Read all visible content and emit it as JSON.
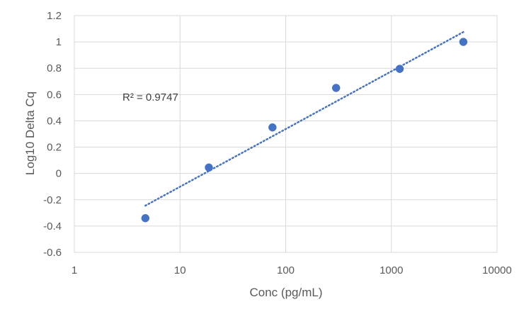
{
  "chart_data": {
    "type": "scatter",
    "title": "",
    "xlabel": "Conc (pg/mL)",
    "ylabel": "Log10 Delta Cq",
    "x_scale": "log",
    "xlim": [
      1,
      10000
    ],
    "ylim": [
      -0.6,
      1.2
    ],
    "x_ticks": [
      "1",
      "10",
      "100",
      "1000",
      "10000"
    ],
    "y_ticks": [
      "-0.6",
      "-0.4",
      "-0.2",
      "0",
      "0.2",
      "0.4",
      "0.6",
      "0.8",
      "1",
      "1.2"
    ],
    "grid": true,
    "legend": "none",
    "series": [
      {
        "color": "#4472C4",
        "points": [
          {
            "x": 4.7,
            "y": -0.34
          },
          {
            "x": 18.75,
            "y": 0.045
          },
          {
            "x": 75,
            "y": 0.35
          },
          {
            "x": 300,
            "y": 0.65
          },
          {
            "x": 1200,
            "y": 0.795
          },
          {
            "x": 4800,
            "y": 1.0
          }
        ]
      }
    ],
    "trendline": {
      "type": "logarithmic",
      "style": "dotted",
      "color": "#4472C4",
      "from": {
        "x": 4.7,
        "y": -0.245
      },
      "to": {
        "x": 4800,
        "y": 1.075
      }
    },
    "annotation": "R² = 0.9747"
  }
}
